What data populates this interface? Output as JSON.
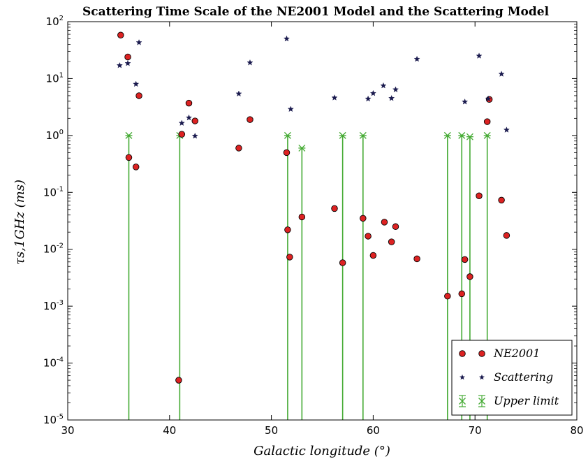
{
  "chart_data": {
    "type": "scatter",
    "title": "Scattering Time Scale of the NE2001 Model and the Scattering Model",
    "xlabel": "Galactic longitude (°)",
    "ylabel": "τs,1GHz (ms)",
    "xlim": [
      30,
      80
    ],
    "ylim": [
      1e-05,
      100
    ],
    "yscale": "log",
    "grid": false,
    "legend_position": "bottom-right",
    "x_ticks": [
      30,
      40,
      50,
      60,
      70,
      80
    ],
    "y_ticks": [
      {
        "value": 1e-05,
        "base": "10",
        "exp": "-5"
      },
      {
        "value": 0.0001,
        "base": "10",
        "exp": "-4"
      },
      {
        "value": 0.001,
        "base": "10",
        "exp": "-3"
      },
      {
        "value": 0.01,
        "base": "10",
        "exp": "-2"
      },
      {
        "value": 0.1,
        "base": "10",
        "exp": "-1"
      },
      {
        "value": 1,
        "base": "10",
        "exp": "0"
      },
      {
        "value": 10,
        "base": "10",
        "exp": "1"
      },
      {
        "value": 100,
        "base": "10",
        "exp": "2"
      }
    ],
    "series": [
      {
        "name": "NE2001",
        "marker": "circle",
        "color": "#dd2222",
        "points": [
          [
            35.2,
            58
          ],
          [
            35.9,
            24
          ],
          [
            37.0,
            5.0
          ],
          [
            36.0,
            0.41
          ],
          [
            36.7,
            0.28
          ],
          [
            41.2,
            1.05
          ],
          [
            41.9,
            3.7
          ],
          [
            42.5,
            1.8
          ],
          [
            40.9,
            5e-05
          ],
          [
            46.8,
            0.6
          ],
          [
            47.9,
            1.9
          ],
          [
            51.5,
            0.5
          ],
          [
            51.6,
            0.022
          ],
          [
            51.8,
            0.0073
          ],
          [
            53.0,
            0.037
          ],
          [
            56.2,
            0.052
          ],
          [
            57.0,
            0.0058
          ],
          [
            59.0,
            0.035
          ],
          [
            59.5,
            0.017
          ],
          [
            60.0,
            0.0078
          ],
          [
            61.1,
            0.03
          ],
          [
            61.8,
            0.0135
          ],
          [
            62.2,
            0.025
          ],
          [
            64.3,
            0.0068
          ],
          [
            67.3,
            0.0015
          ],
          [
            68.7,
            0.00165
          ],
          [
            69.0,
            0.0066
          ],
          [
            69.5,
            0.0033
          ],
          [
            70.4,
            0.087
          ],
          [
            71.2,
            1.75
          ],
          [
            71.4,
            4.3
          ],
          [
            72.6,
            0.073
          ],
          [
            73.1,
            0.0175
          ]
        ]
      },
      {
        "name": "Scattering",
        "marker": "star",
        "color": "#1a1a4e",
        "points": [
          [
            35.1,
            17
          ],
          [
            35.9,
            18.5
          ],
          [
            37.0,
            43
          ],
          [
            36.7,
            8
          ],
          [
            41.2,
            1.65
          ],
          [
            41.9,
            2.05
          ],
          [
            42.5,
            0.98
          ],
          [
            46.8,
            5.4
          ],
          [
            47.9,
            19
          ],
          [
            51.5,
            50
          ],
          [
            51.9,
            2.9
          ],
          [
            56.2,
            4.6
          ],
          [
            59.5,
            4.4
          ],
          [
            60.0,
            5.5
          ],
          [
            61.0,
            7.5
          ],
          [
            61.8,
            4.5
          ],
          [
            62.2,
            6.4
          ],
          [
            64.3,
            22
          ],
          [
            69.0,
            3.9
          ],
          [
            70.4,
            25
          ],
          [
            71.3,
            4.4
          ],
          [
            72.6,
            12
          ],
          [
            73.1,
            1.25
          ]
        ]
      },
      {
        "name": "Upper limit",
        "marker": "x-errorbar",
        "color": "#44aa33",
        "points": [
          [
            36.0,
            1.0
          ],
          [
            41.0,
            1.0
          ],
          [
            51.6,
            1.0
          ],
          [
            53.0,
            0.6
          ],
          [
            57.0,
            1.0
          ],
          [
            59.0,
            1.0
          ],
          [
            67.3,
            1.0
          ],
          [
            68.7,
            1.0
          ],
          [
            69.5,
            0.95
          ],
          [
            71.2,
            1.0
          ]
        ]
      }
    ]
  }
}
